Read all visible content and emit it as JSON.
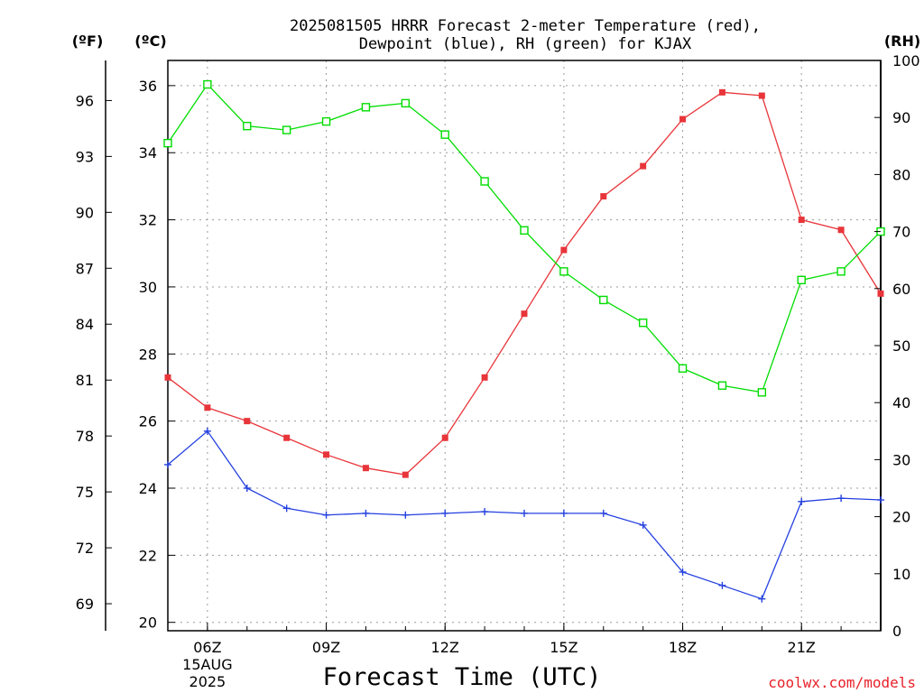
{
  "title_line1": "2025081505 HRRR Forecast 2-meter Temperature (red),",
  "title_line2": "Dewpoint (blue), RH (green) for KJAX",
  "unit_f": "(ºF)",
  "unit_c": "(ºC)",
  "unit_rh": "(RH)",
  "xlabel": "Forecast Time (UTC)",
  "credit": "coolwx.com/models",
  "colors": {
    "temperature": "#e8353a",
    "dewpoint": "#2440e0",
    "rh": "#00dd00",
    "grid": "#9a9a9a"
  },
  "chart_data": {
    "type": "line",
    "title": "2025081505 HRRR Forecast 2-meter Temperature (red), Dewpoint (blue), RH (green) for KJAX",
    "xlabel": "Forecast Time (UTC)",
    "x_hours": [
      5,
      6,
      7,
      8,
      9,
      10,
      11,
      12,
      13,
      14,
      15,
      16,
      17,
      18,
      19,
      20,
      21,
      22,
      23
    ],
    "x_ticks": [
      {
        "hour": 6,
        "label": "06Z",
        "sub": [
          "15AUG",
          "2025"
        ]
      },
      {
        "hour": 9,
        "label": "09Z"
      },
      {
        "hour": 12,
        "label": "12Z"
      },
      {
        "hour": 15,
        "label": "15Z"
      },
      {
        "hour": 18,
        "label": "18Z"
      },
      {
        "hour": 21,
        "label": "21Z"
      }
    ],
    "xlim": [
      5,
      23
    ],
    "y_celsius": {
      "ylim": [
        19.75,
        36.75
      ],
      "ticks": [
        20,
        22,
        24,
        26,
        28,
        30,
        32,
        34,
        36
      ]
    },
    "y_fahrenheit": {
      "ticks": [
        69,
        72,
        75,
        78,
        81,
        84,
        87,
        90,
        93,
        96
      ]
    },
    "y_rh": {
      "ylim": [
        0,
        100
      ],
      "ticks": [
        0,
        10,
        20,
        30,
        40,
        50,
        60,
        70,
        80,
        90,
        100
      ]
    },
    "grid": true,
    "series": [
      {
        "name": "Temperature",
        "axis": "celsius",
        "marker": "filled-square",
        "color_key": "temperature",
        "values": [
          27.3,
          26.4,
          26.0,
          25.5,
          25.0,
          24.6,
          24.4,
          25.5,
          27.3,
          29.2,
          31.1,
          32.7,
          33.6,
          35.0,
          35.8,
          35.7,
          32.0,
          31.7,
          29.8
        ]
      },
      {
        "name": "Dewpoint",
        "axis": "celsius",
        "marker": "plus",
        "color_key": "dewpoint",
        "values": [
          24.7,
          25.7,
          24.0,
          23.4,
          23.2,
          23.25,
          23.2,
          23.25,
          23.3,
          23.25,
          23.25,
          23.25,
          22.9,
          21.5,
          21.1,
          20.7,
          23.6,
          23.7,
          23.65
        ]
      },
      {
        "name": "RH",
        "axis": "rh",
        "marker": "open-square",
        "color_key": "rh",
        "values": [
          85.5,
          95.8,
          88.5,
          87.8,
          89.3,
          91.8,
          92.5,
          87.0,
          78.8,
          70.2,
          63.0,
          58.0,
          54.0,
          46.0,
          43.0,
          41.8,
          61.5,
          63.0,
          70.0
        ]
      }
    ]
  }
}
